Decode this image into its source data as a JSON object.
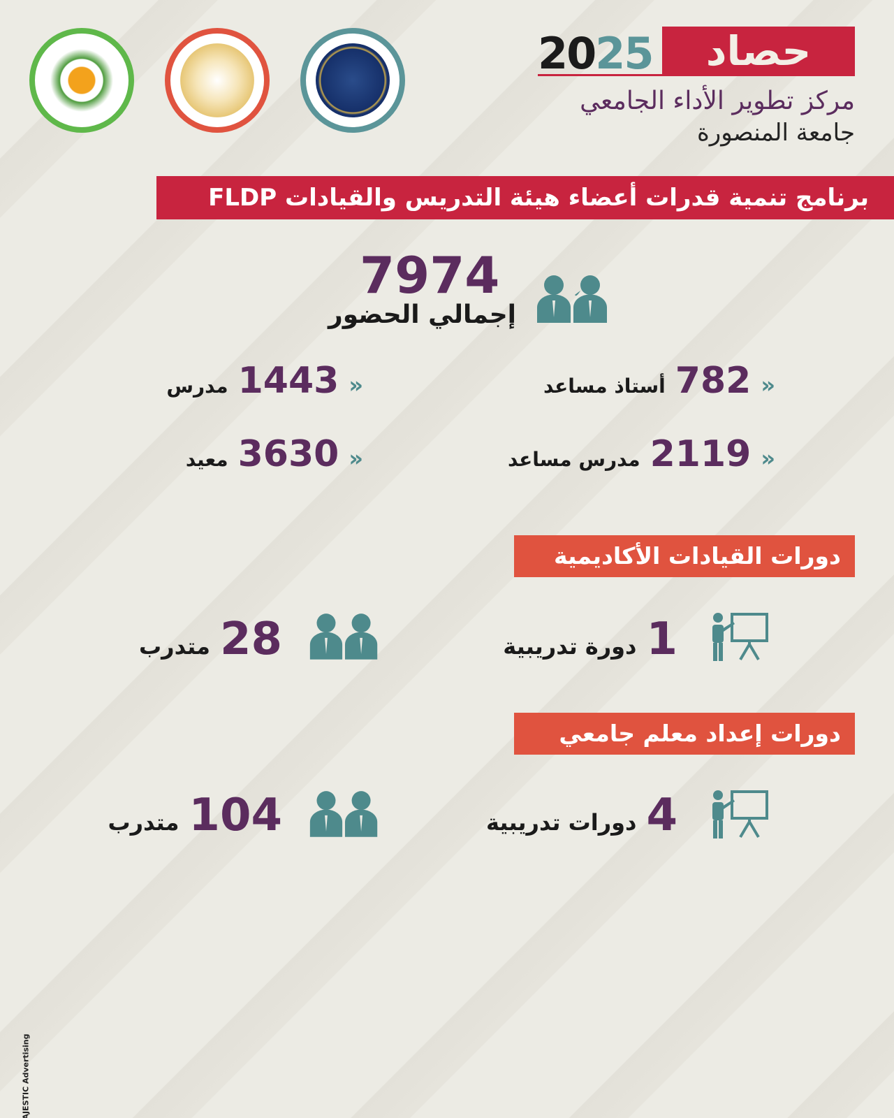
{
  "header": {
    "year_part1": "20",
    "year_part2": "25",
    "brand": "حصاد",
    "center_name": "مركز تطوير الأداء الجامعي",
    "university": "جامعة المنصورة",
    "logos": [
      "UDC University Development Center",
      "Graduate Studies and Research - Mansoura University",
      "Mansoura University"
    ]
  },
  "program_title": "برنامج تنمية قدرات أعضاء هيئة التدريس والقيادات FLDP",
  "total": {
    "value": "7974",
    "label": "إجمالي الحضور",
    "icon": "people-icon"
  },
  "breakdown": [
    {
      "value": "782",
      "label": "أستاذ مساعد"
    },
    {
      "value": "1443",
      "label": "مدرس"
    },
    {
      "value": "2119",
      "label": "مدرس مساعد"
    },
    {
      "value": "3630",
      "label": "معيد"
    }
  ],
  "sections": [
    {
      "title": "دورات القيادات الأكاديمية",
      "courses_value": "1",
      "courses_label": "دورة تدريبية",
      "trainees_value": "28",
      "trainees_label": "متدرب"
    },
    {
      "title": "دورات إعداد معلم جامعي",
      "courses_value": "4",
      "courses_label": "دورات تدريبية",
      "trainees_value": "104",
      "trainees_label": "متدرب"
    }
  ],
  "footer": {
    "credit": "MAJESTIC Advertising"
  },
  "colors": {
    "red": "#c8243f",
    "purple": "#5b2c5e",
    "teal": "#4e8a8c",
    "section": "#e0533f",
    "background": "#ecebe4"
  }
}
